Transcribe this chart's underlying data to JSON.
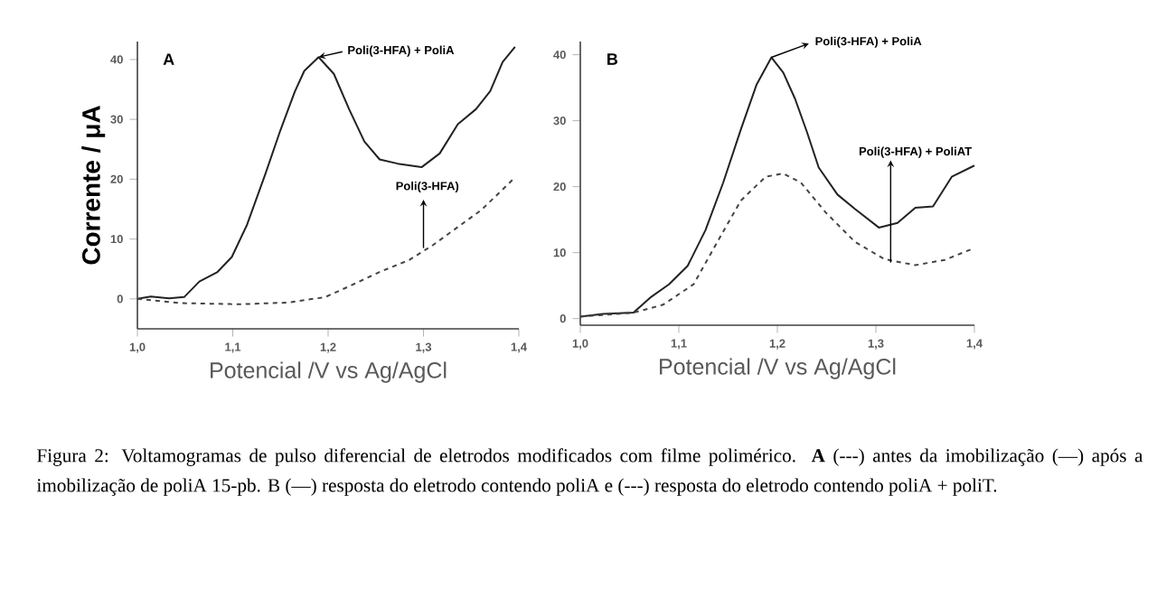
{
  "chart_data": [
    {
      "type": "line",
      "ylabel": "Corrente / μA",
      "xlabel": "Potencial /V vs Ag/AgCl",
      "xlim": [
        1.0,
        1.4
      ],
      "xticks": [
        {
          "value": 1.0,
          "label": "1,0"
        },
        {
          "value": 1.1,
          "label": "1,1"
        },
        {
          "value": 1.2,
          "label": "1,2"
        },
        {
          "value": 1.3,
          "label": "1,3"
        },
        {
          "value": 1.4,
          "label": "1,4"
        }
      ],
      "ylim": [
        -5,
        43
      ],
      "yticks": [
        0,
        10,
        20,
        30,
        40
      ],
      "series": [
        {
          "color": "#222222",
          "line_style": "solid",
          "x": [
            1.0,
            1.014,
            1.033,
            1.049,
            1.065,
            1.084,
            1.099,
            1.115,
            1.134,
            1.15,
            1.165,
            1.175,
            1.19,
            1.206,
            1.222,
            1.238,
            1.254,
            1.273,
            1.298,
            1.317,
            1.336,
            1.355,
            1.37,
            1.383,
            1.396
          ],
          "values": [
            0,
            0.4,
            0.1,
            0.3,
            2.9,
            4.5,
            7,
            12.4,
            20.8,
            28.2,
            34.6,
            38.1,
            40.4,
            37.6,
            31.7,
            26.3,
            23.3,
            22.6,
            22.0,
            24.3,
            29.2,
            31.7,
            34.7,
            39.6,
            42.1
          ]
        },
        {
          "color": "#444444",
          "line_style": "dashed",
          "x": [
            1.0,
            1.045,
            1.108,
            1.159,
            1.197,
            1.222,
            1.254,
            1.285,
            1.31,
            1.336,
            1.361,
            1.396
          ],
          "values": [
            0,
            -0.7,
            -0.9,
            -0.6,
            0.3,
            2.1,
            4.5,
            6.5,
            9,
            12,
            14.9,
            20.3
          ]
        }
      ],
      "annotations": [
        "A",
        {
          "text": "Poli(3-HFA) + PoliA",
          "x": 1.19,
          "y": 40.4
        },
        {
          "text": "Poli(3-HFA)",
          "x": 1.3,
          "y": 8.5
        },
        "Figura 2: Voltamogramas de pulso diferencial de eletrodos modificados com filme polimérico. **A** (---) antes da imobilização (—) após a imobilização de poliA 15-pb. B (—) resposta do eletrodo contendo poliA e (---) resposta do eletrodo contendo poliA + poliT."
      ]
    },
    {
      "type": "line",
      "xlabel": "Potencial /V vs Ag/AgCl",
      "xlim": [
        1.0,
        1.4
      ],
      "xticks": [
        {
          "value": 1.0,
          "label": "1,0"
        },
        {
          "value": 1.1,
          "label": "1,1"
        },
        {
          "value": 1.2,
          "label": "1,2"
        },
        {
          "value": 1.3,
          "label": "1,3"
        },
        {
          "value": 1.4,
          "label": "1,4"
        }
      ],
      "ylim": [
        -1,
        42
      ],
      "yticks": [
        0,
        10,
        20,
        30,
        40
      ],
      "series": [
        {
          "color": "#222222",
          "line_style": "solid",
          "x": [
            1.0,
            1.023,
            1.054,
            1.072,
            1.09,
            1.109,
            1.127,
            1.145,
            1.163,
            1.179,
            1.194,
            1.206,
            1.218,
            1.23,
            1.242,
            1.261,
            1.279,
            1.303,
            1.322,
            1.34,
            1.358,
            1.377,
            1.4
          ],
          "values": [
            0.3,
            0.7,
            0.9,
            3.3,
            5.2,
            8,
            13.4,
            20.6,
            28.7,
            35.5,
            39.6,
            37.3,
            33.3,
            28.3,
            22.9,
            18.8,
            16.6,
            13.8,
            14.5,
            16.8,
            17,
            21.5,
            23.2
          ]
        },
        {
          "color": "#444444",
          "line_style": "dashed",
          "x": [
            1.0,
            1.054,
            1.084,
            1.115,
            1.139,
            1.163,
            1.188,
            1.206,
            1.224,
            1.249,
            1.279,
            1.309,
            1.34,
            1.37,
            1.4
          ],
          "values": [
            0.3,
            0.9,
            2.1,
            5.2,
            11.6,
            17.9,
            21.5,
            22,
            20.6,
            16.1,
            11.6,
            9,
            8.1,
            8.9,
            10.7
          ]
        }
      ],
      "annotations": [
        "B",
        {
          "text": "Poli(3-HFA) + PoliA",
          "x": 1.194,
          "y": 39.6
        },
        {
          "text": "Poli(3-HFA) + PoliAT",
          "x": 1.315,
          "y": 8.5
        }
      ]
    }
  ]
}
